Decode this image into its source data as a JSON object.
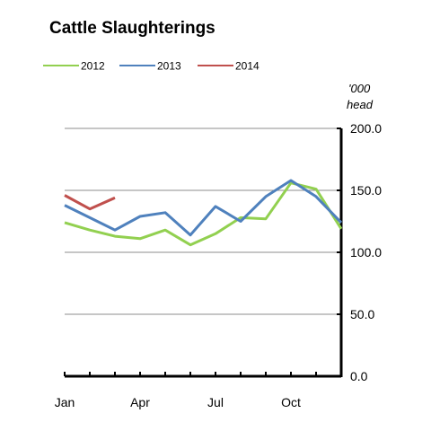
{
  "chart_data": {
    "type": "line",
    "title": "Cattle Slaughterings",
    "ylabel_line1": "'000",
    "ylabel_line2": "head",
    "xlabel": "",
    "ylim": [
      0,
      200
    ],
    "y_ticks": [
      "0.0",
      "50.0",
      "100.0",
      "150.0",
      "200.0"
    ],
    "y_tick_values": [
      0,
      50,
      100,
      150,
      200
    ],
    "x_ticks": [
      {
        "label": "Jan",
        "month": 1
      },
      {
        "label": "Apr",
        "month": 4
      },
      {
        "label": "Jul",
        "month": 7
      },
      {
        "label": "Oct",
        "month": 10
      }
    ],
    "x_months": [
      1,
      2,
      3,
      4,
      5,
      6,
      7,
      8,
      9,
      10,
      11,
      12
    ],
    "grid": true,
    "legend_position": "top",
    "series": [
      {
        "name": "2012",
        "color": "#92d050",
        "values": [
          124,
          118,
          113,
          111,
          118,
          106,
          115,
          128,
          127,
          156,
          151,
          119
        ]
      },
      {
        "name": "2013",
        "color": "#4f81bd",
        "values": [
          138,
          128,
          118,
          129,
          132,
          114,
          137,
          125,
          145,
          158,
          145,
          124
        ]
      },
      {
        "name": "2014",
        "color": "#c0504d",
        "values": [
          146,
          135,
          144
        ]
      }
    ]
  }
}
